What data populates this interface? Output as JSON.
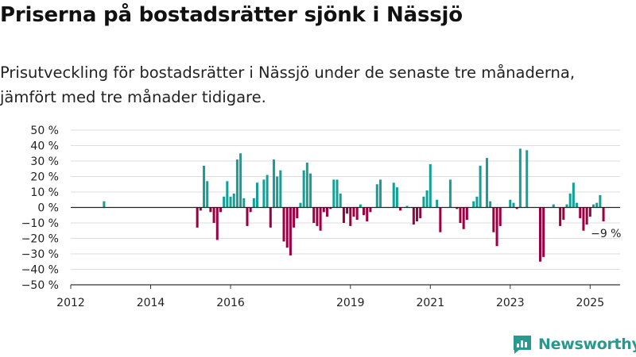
{
  "header": {
    "title": "Priserna på bostadsrätter sjönk i Nässjö",
    "subtitle": "Prisutveckling för bostadsrätter i Nässjö under de senaste tre månaderna, jämfört med tre månader tidigare."
  },
  "brand": {
    "name": "Newsworthy"
  },
  "colors": {
    "positive": "#12a097",
    "negative": "#9b0042",
    "grid": "#dddddd",
    "axis": "#333333",
    "brand": "#27998f"
  },
  "chart_data": {
    "type": "bar",
    "ylim": [
      -50,
      50
    ],
    "yticks": [
      50,
      40,
      30,
      20,
      10,
      0,
      -10,
      -20,
      -30,
      -40,
      -50
    ],
    "ytick_labels": [
      "50 %",
      "40 %",
      "30 %",
      "20 %",
      "10 %",
      "0 %",
      "−10 %",
      "−20 %",
      "−30 %",
      "−40 %",
      "−50 %"
    ],
    "x_range": [
      "2012-01",
      "2025-10"
    ],
    "xticks": [
      {
        "x": "2012-01",
        "label": "2012"
      },
      {
        "x": "2014-01",
        "label": "2014"
      },
      {
        "x": "2016-01",
        "label": "2016"
      },
      {
        "x": "2019-01",
        "label": "2019"
      },
      {
        "x": "2021-01",
        "label": "2021"
      },
      {
        "x": "2023-01",
        "label": "2023"
      },
      {
        "x": "2025-01",
        "label": "2025"
      }
    ],
    "annotation": {
      "x": "2025-05",
      "y": -9,
      "text": "−9 %"
    },
    "grid": true,
    "series": [
      {
        "x": [
          "2012-11",
          "2015-03",
          "2015-04",
          "2015-05",
          "2015-06",
          "2015-07",
          "2015-08",
          "2015-09",
          "2015-10",
          "2015-11",
          "2015-12",
          "2016-01",
          "2016-02",
          "2016-03",
          "2016-04",
          "2016-05",
          "2016-06",
          "2016-07",
          "2016-08",
          "2016-09",
          "2016-10",
          "2016-11",
          "2016-12",
          "2017-01",
          "2017-02",
          "2017-03",
          "2017-04",
          "2017-05",
          "2017-06",
          "2017-07",
          "2017-08",
          "2017-09",
          "2017-10",
          "2017-11",
          "2017-12",
          "2018-01",
          "2018-02",
          "2018-03",
          "2018-04",
          "2018-05",
          "2018-06",
          "2018-07",
          "2018-08",
          "2018-09",
          "2018-10",
          "2018-11",
          "2018-12",
          "2019-01",
          "2019-02",
          "2019-03",
          "2019-04",
          "2019-05",
          "2019-06",
          "2019-07",
          "2019-08",
          "2019-09",
          "2019-10",
          "2020-02",
          "2020-03",
          "2020-04",
          "2020-05",
          "2020-06",
          "2020-07",
          "2020-08",
          "2020-09",
          "2020-10",
          "2020-11",
          "2020-12",
          "2021-01",
          "2021-03",
          "2021-04",
          "2021-05",
          "2021-06",
          "2021-07",
          "2021-08",
          "2021-09",
          "2021-10",
          "2021-11",
          "2021-12",
          "2022-01",
          "2022-02",
          "2022-03",
          "2022-04",
          "2022-05",
          "2022-06",
          "2022-07",
          "2022-08",
          "2022-09",
          "2022-10",
          "2022-11",
          "2023-01",
          "2023-02",
          "2023-03",
          "2023-04",
          "2023-06",
          "2023-10",
          "2023-11",
          "2023-12",
          "2024-01",
          "2024-02",
          "2024-03",
          "2024-04",
          "2024-05",
          "2024-06",
          "2024-07",
          "2024-08",
          "2024-09",
          "2024-10",
          "2024-11",
          "2024-12",
          "2025-01",
          "2025-02",
          "2025-03",
          "2025-04",
          "2025-05"
        ],
        "values": [
          4,
          -13,
          -2,
          27,
          17,
          -3,
          -10,
          -21,
          -3,
          7,
          17,
          7,
          9,
          31,
          35,
          6,
          -12,
          -3,
          6,
          16,
          0,
          18,
          21,
          -13,
          31,
          20,
          24,
          -22,
          -26,
          -31,
          -13,
          -7,
          3,
          24,
          29,
          22,
          -10,
          -12,
          -15,
          -3,
          -6,
          -1,
          18,
          18,
          9,
          -10,
          -4,
          -12,
          -6,
          -8,
          2,
          -5,
          -9,
          -3,
          0,
          15,
          18,
          16,
          13,
          -2,
          0,
          1,
          0,
          -11,
          -9,
          -7,
          7,
          11,
          28,
          5,
          -16,
          0,
          0,
          18,
          0,
          -1,
          -10,
          -14,
          -8,
          0,
          4,
          7,
          27,
          0,
          32,
          4,
          -16,
          -25,
          -12,
          0,
          5,
          3,
          -1,
          38,
          37,
          -35,
          -32,
          0,
          0,
          2,
          0,
          -12,
          -8,
          2,
          9,
          16,
          3,
          -7,
          -15,
          -11,
          -6,
          2,
          3,
          8,
          -9
        ]
      }
    ]
  }
}
